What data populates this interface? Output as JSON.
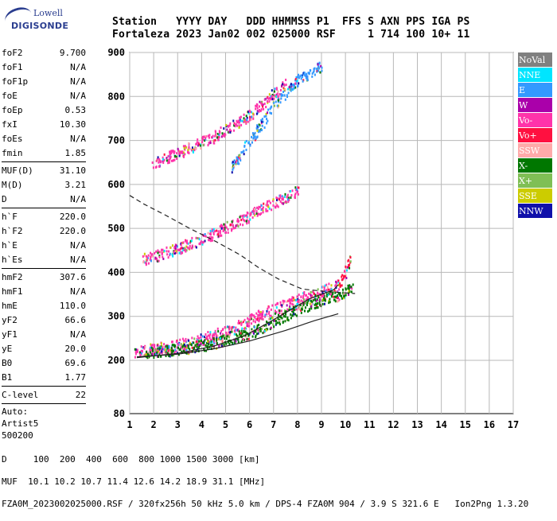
{
  "header": {
    "line1": "Station   YYYY DAY   DDD HHMMSS P1  FFS S AXN PPS IGA PS",
    "line2": "Fortaleza 2023 Jan02 002 025000 RSF     1 714 100 10+ 11"
  },
  "logo": {
    "line1": "Lowell",
    "line2": "DIGISONDE"
  },
  "params": {
    "group1": [
      {
        "k": "foF2",
        "v": "9.700"
      },
      {
        "k": "foF1",
        "v": "N/A"
      },
      {
        "k": "foF1p",
        "v": "N/A"
      },
      {
        "k": "foE",
        "v": "N/A"
      },
      {
        "k": "foEp",
        "v": "0.53"
      },
      {
        "k": "fxI",
        "v": "10.30"
      },
      {
        "k": "foEs",
        "v": "N/A"
      },
      {
        "k": "fmin",
        "v": "1.85"
      }
    ],
    "group2": [
      {
        "k": "MUF(D)",
        "v": "31.10"
      },
      {
        "k": "M(D)",
        "v": "3.21"
      },
      {
        "k": "D",
        "v": "N/A"
      }
    ],
    "group3": [
      {
        "k": "h`F",
        "v": "220.0"
      },
      {
        "k": "h`F2",
        "v": "220.0"
      },
      {
        "k": "h`E",
        "v": "N/A"
      },
      {
        "k": "h`Es",
        "v": "N/A"
      }
    ],
    "group4": [
      {
        "k": "hmF2",
        "v": "307.6"
      },
      {
        "k": "hmF1",
        "v": "N/A"
      },
      {
        "k": "hmE",
        "v": "110.0"
      },
      {
        "k": "yF2",
        "v": "66.6"
      },
      {
        "k": "yF1",
        "v": "N/A"
      },
      {
        "k": "yE",
        "v": "20.0"
      },
      {
        "k": "B0",
        "v": "69.6"
      },
      {
        "k": "B1",
        "v": "1.77"
      }
    ],
    "group5": [
      {
        "k": "C-level",
        "v": "22"
      }
    ],
    "auto": [
      "Auto:",
      "Artist5",
      "500200"
    ]
  },
  "legend": [
    {
      "label": "NoVal",
      "color": "#808080"
    },
    {
      "label": "NNE",
      "color": "#00e5ff"
    },
    {
      "label": "E",
      "color": "#3399ff"
    },
    {
      "label": "W",
      "color": "#aa00aa"
    },
    {
      "label": "Vo-",
      "color": "#ff33aa"
    },
    {
      "label": "Vo+",
      "color": "#ff1040"
    },
    {
      "label": "SSW",
      "color": "#ffaaaa"
    },
    {
      "label": "X-",
      "color": "#007700"
    },
    {
      "label": "X+",
      "color": "#7fbf55"
    },
    {
      "label": "SSE",
      "color": "#cccc00"
    },
    {
      "label": "NNW",
      "color": "#1010aa"
    }
  ],
  "footer": {
    "line1": "D     100  200  400  600  800 1000 1500 3000 [km]",
    "line2": "MUF  10.1 10.2 10.7 11.4 12.6 14.2 18.9 31.1 [MHz]",
    "line3": "FZA0M_2023002025000.RSF / 320fx256h 50 kHz 5.0 km / DPS-4 FZA0M 904 / 3.9 S 321.6 E   Ion2Png 1.3.20"
  },
  "chart_data": {
    "type": "scatter",
    "x_ticks": [
      "1",
      "2",
      "3",
      "4",
      "5",
      "6",
      "7",
      "8",
      "9",
      "10",
      "11",
      "12",
      "13",
      "14",
      "15",
      "16",
      "17"
    ],
    "y_ticks": [
      "200",
      "300",
      "400",
      "500",
      "600",
      "700",
      "800",
      "900"
    ],
    "y_axis_extra_label": "80",
    "xlim": [
      1,
      17
    ],
    "ylim": [
      200,
      900
    ],
    "grid": true,
    "legend_position": "right",
    "traces": [
      {
        "name": "O-mode F2 lower edge",
        "color": "#ff33aa",
        "x": [
          1.2,
          2.0,
          3.0,
          4.0,
          5.0,
          6.0,
          7.0,
          8.0,
          9.0,
          9.7
        ],
        "y": [
          222,
          228,
          236,
          250,
          268,
          292,
          318,
          340,
          358,
          372
        ]
      },
      {
        "name": "O-mode F2 upper branch",
        "color": "#ff1040",
        "x": [
          9.7,
          9.9,
          10.1,
          10.2
        ],
        "y": [
          372,
          390,
          415,
          440
        ]
      },
      {
        "name": "X-mode F2",
        "color": "#007700",
        "x": [
          1.6,
          3.0,
          4.5,
          6.0,
          7.0,
          8.0,
          9.0,
          9.8,
          10.3
        ],
        "y": [
          220,
          226,
          240,
          262,
          290,
          318,
          338,
          352,
          372
        ]
      },
      {
        "name": "2nd hop",
        "color": "#ff33aa",
        "x": [
          1.5,
          3.0,
          4.5,
          6.0,
          7.0,
          8.0
        ],
        "y": [
          430,
          455,
          490,
          530,
          560,
          585
        ]
      },
      {
        "name": "3rd hop",
        "color": "#ff33aa",
        "x": [
          1.9,
          3.0,
          4.5,
          6.0,
          7.5
        ],
        "y": [
          650,
          672,
          710,
          760,
          830
        ]
      },
      {
        "name": "oblique E",
        "color": "#3399ff",
        "x": [
          5.2,
          6.0,
          7.0,
          8.0,
          9.0
        ],
        "y": [
          640,
          700,
          780,
          840,
          870
        ]
      }
    ],
    "profile_curves": [
      {
        "name": "profile",
        "style": "solid",
        "x": [
          1.3,
          3.0,
          4.5,
          5.8,
          6.8,
          7.8,
          8.5,
          9.5,
          9.7
        ],
        "y": [
          206,
          216,
          232,
          256,
          286,
          318,
          340,
          360,
          372
        ]
      },
      {
        "name": "trace fit",
        "style": "solid",
        "x": [
          1.3,
          3.0,
          4.5,
          6.0,
          7.5,
          8.7,
          9.7
        ],
        "y": [
          208,
          214,
          226,
          244,
          268,
          290,
          306
        ]
      },
      {
        "name": "model",
        "style": "dashed",
        "x": [
          1.0,
          1.6,
          2.5,
          3.5,
          4.6,
          5.6,
          6.4,
          7.2,
          8.2,
          9.3,
          10.4
        ],
        "y": [
          575,
          555,
          530,
          500,
          470,
          440,
          410,
          385,
          362,
          356,
          352
        ]
      }
    ]
  }
}
